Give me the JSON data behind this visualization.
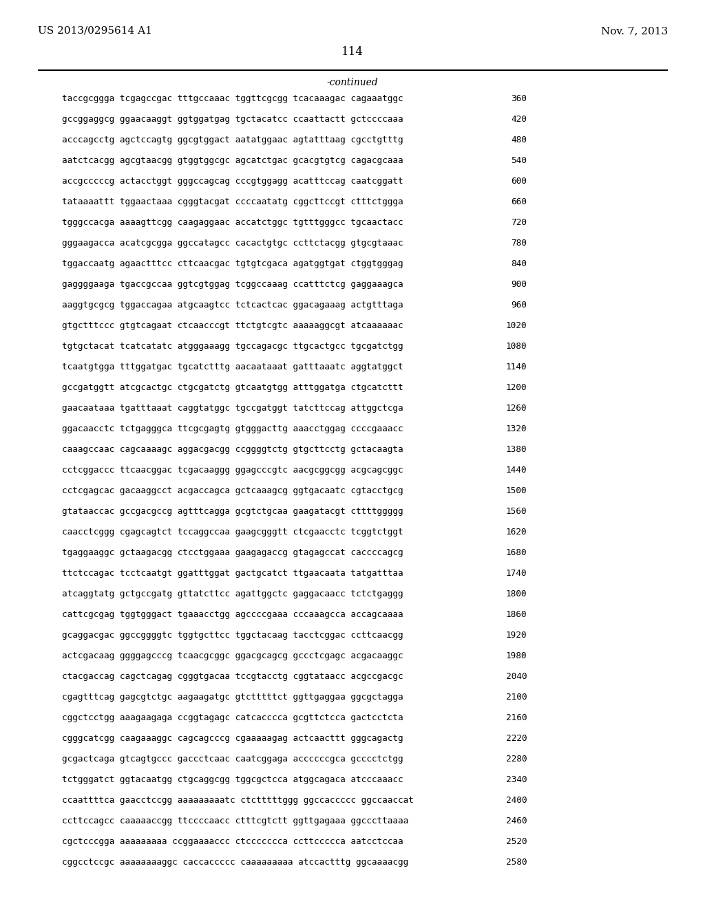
{
  "header_left": "US 2013/0295614 A1",
  "header_right": "Nov. 7, 2013",
  "page_number": "114",
  "continued_label": "-continued",
  "background_color": "#ffffff",
  "text_color": "#000000",
  "font_size_header": 11.0,
  "font_size_page": 12.0,
  "font_size_continued": 10.0,
  "font_size_sequence": 9.2,
  "sequences": [
    [
      "taccgcggga tcgagccgac tttgccaaac tggttcgcgg tcacaaagac cagaaatggc",
      "360"
    ],
    [
      "gccggaggcg ggaacaaggt ggtggatgag tgctacatcc ccaattactt gctccccaaa",
      "420"
    ],
    [
      "acccagcctg agctccagtg ggcgtggact aatatggaac agtatttaag cgcctgtttg",
      "480"
    ],
    [
      "aatctcacgg agcgtaacgg gtggtggcgc agcatctgac gcacgtgtcg cagacgcaaa",
      "540"
    ],
    [
      "accgcccccg actacctggt gggccagcag cccgtggagg acatttccag caatcggatt",
      "600"
    ],
    [
      "tataaaattt tggaactaaa cgggtacgat ccccaatatg cggcttccgt ctttctggga",
      "660"
    ],
    [
      "tgggccacga aaaagttcgg caagaggaac accatctggc tgtttgggcc tgcaactacc",
      "720"
    ],
    [
      "gggaagacca acatcgcgga ggccatagcc cacactgtgc ccttctacgg gtgcgtaaac",
      "780"
    ],
    [
      "tggaccaatg agaactttcc cttcaacgac tgtgtcgaca agatggtgat ctggtgggag",
      "840"
    ],
    [
      "gaggggaaga tgaccgccaa ggtcgtggag tcggccaaag ccatttctcg gaggaaagca",
      "900"
    ],
    [
      "aaggtgcgcg tggaccagaa atgcaagtcc tctcactcac ggacagaaag actgtttaga",
      "960"
    ],
    [
      "gtgctttccc gtgtcagaat ctcaacccgt ttctgtcgtc aaaaaggcgt atcaaaaaac",
      "1020"
    ],
    [
      "tgtgctacat tcatcatatc atgggaaagg tgccagacgc ttgcactgcc tgcgatctgg",
      "1080"
    ],
    [
      "tcaatgtgga tttggatgac tgcatctttg aacaataaat gatttaaatc aggtatggct",
      "1140"
    ],
    [
      "gccgatggtt atcgcactgc ctgcgatctg gtcaatgtgg atttggatga ctgcatcttt",
      "1200"
    ],
    [
      "gaacaataaa tgatttaaat caggtatggc tgccgatggt tatcttccag attggctcga",
      "1260"
    ],
    [
      "ggacaacctc tctgagggca ttcgcgagtg gtgggacttg aaacctggag ccccgaaacc",
      "1320"
    ],
    [
      "caaagccaac cagcaaaagc aggacgacgg ccggggtctg gtgcttcctg gctacaagta",
      "1380"
    ],
    [
      "cctcggaccc ttcaacggac tcgacaaggg ggagcccgtc aacgcggcgg acgcagcggc",
      "1440"
    ],
    [
      "cctcgagcac gacaaggcct acgaccagca gctcaaagcg ggtgacaatc cgtacctgcg",
      "1500"
    ],
    [
      "gtataaccac gccgacgccg agtttcagga gcgtctgcaa gaagatacgt cttttggggg",
      "1560"
    ],
    [
      "caacctcggg cgagcagtct tccaggccaa gaagcgggtt ctcgaacctc tcggtctggt",
      "1620"
    ],
    [
      "tgaggaaggc gctaagacgg ctcctggaaa gaagagaccg gtagagccat caccccagcg",
      "1680"
    ],
    [
      "ttctccagac tcctcaatgt ggatttggat gactgcatct ttgaacaata tatgatttaa",
      "1740"
    ],
    [
      "atcaggtatg gctgccgatg gttatcttcc agattggctc gaggacaacc tctctgaggg",
      "1800"
    ],
    [
      "cattcgcgag tggtgggact tgaaacctgg agccccgaaa cccaaagcca accagcaaaa",
      "1860"
    ],
    [
      "gcaggacgac ggccggggtc tggtgcttcc tggctacaag tacctcggac ccttcaacgg",
      "1920"
    ],
    [
      "actcgacaag ggggagcccg tcaacgcggc ggacgcagcg gccctcgagc acgacaaggc",
      "1980"
    ],
    [
      "ctacgaccag cagctcagag cgggtgacaa tccgtacctg cggtataacc acgccgacgc",
      "2040"
    ],
    [
      "cgagtttcag gagcgtctgc aagaagatgc gtctttttct ggttgaggaa ggcgctagga",
      "2100"
    ],
    [
      "cggctcctgg aaagaagaga ccggtagagc catcacccca gcgttctcca gactcctcta",
      "2160"
    ],
    [
      "cgggcatcgg caagaaaggc cagcagcccg cgaaaaagag actcaacttt gggcagactg",
      "2220"
    ],
    [
      "gcgactcaga gtcagtgccc gaccctcaac caatcggaga accccccgca gcccctctgg",
      "2280"
    ],
    [
      "tctgggatct ggtacaatgg ctgcaggcgg tggcgctcca atggcagaca atcccaaacc",
      "2340"
    ],
    [
      "ccaattttca gaacctccgg aaaaaaaaatc ctctttttggg ggccaccccc ggccaaccat",
      "2400"
    ],
    [
      "ccttccagcc caaaaaccgg ttccccaacc ctttcgtctt ggttgagaaa ggcccttaaaa",
      "2460"
    ],
    [
      "cgctcccgga aaaaaaaaa ccggaaaaccc ctccccccca ccttccccca aatcctccaa",
      "2520"
    ],
    [
      "cggcctccgc aaaaaaaaggc caccaccccc caaaaaaaaa atccactttg ggcaaaacgg",
      "2580"
    ]
  ]
}
